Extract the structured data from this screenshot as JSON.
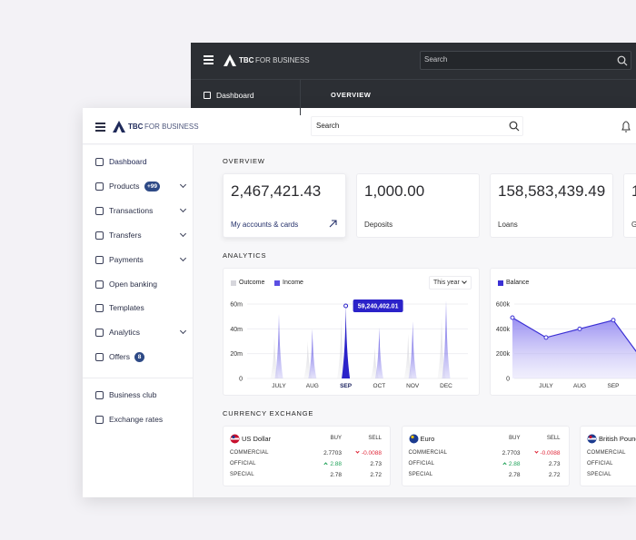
{
  "back_window": {
    "logo": {
      "brand": "TBC",
      "suffix": "FOR BUSINESS"
    },
    "search_placeholder": "Search",
    "nav_item": "Dashboard",
    "section": "OVERVIEW"
  },
  "header": {
    "logo": {
      "brand": "TBC",
      "suffix": "FOR BUSINESS"
    },
    "search_placeholder": "Search"
  },
  "sidebar": {
    "items": [
      {
        "label": "Dashboard",
        "active": true
      },
      {
        "label": "Products",
        "badge": "+99",
        "expandable": true
      },
      {
        "label": "Transactions",
        "expandable": true
      },
      {
        "label": "Transfers",
        "expandable": true
      },
      {
        "label": "Payments",
        "expandable": true
      },
      {
        "label": "Open banking"
      },
      {
        "label": "Templates"
      },
      {
        "label": "Analytics",
        "expandable": true
      },
      {
        "label": "Offers",
        "badge": "8"
      }
    ],
    "secondary": [
      {
        "label": "Business club"
      },
      {
        "label": "Exchange rates"
      }
    ]
  },
  "overview": {
    "title": "OVERVIEW",
    "cards": [
      {
        "amount": "2,467,421.43",
        "label": "My accounts & cards",
        "link": true
      },
      {
        "amount": "1,000.00",
        "label": "Deposits"
      },
      {
        "amount": "158,583,439.49",
        "label": "Loans"
      },
      {
        "amount": "1",
        "label": "G"
      }
    ]
  },
  "analytics": {
    "title": "ANALYTICS",
    "charts": [
      {
        "type": "spike",
        "period": "This year",
        "categories": [
          "JULY",
          "AUG",
          "SEP",
          "OCT",
          "NOV",
          "DEC"
        ],
        "series": [
          {
            "name": "Outcome",
            "color": "#d6d6dc",
            "values": [
              34000000,
              30000000,
              48000000,
              25000000,
              36000000,
              49000000
            ]
          },
          {
            "name": "Income",
            "color": "#5b4fe2",
            "values": [
              52000000,
              40000000,
              59240402.01,
              41000000,
              46000000,
              63000000
            ],
            "value_labels": [
              null,
              null,
              "59,240,402.01",
              null,
              null,
              null
            ]
          }
        ],
        "ylim": [
          0,
          60000000
        ],
        "yticks": [
          0,
          {
            "value": 20000000,
            "label": "20m"
          },
          {
            "value": 40000000,
            "label": "40m"
          },
          {
            "value": 60000000,
            "label": "60m"
          }
        ],
        "grid": true
      },
      {
        "type": "area",
        "categories": [
          null,
          "JULY",
          "AUG",
          "SEP",
          null
        ],
        "series": [
          {
            "name": "Balance",
            "color": "#3b30d4",
            "values": [
              490000,
              330000,
              400000,
              470000,
              100000
            ]
          }
        ],
        "ylim": [
          0,
          600000
        ],
        "yticks": [
          0,
          {
            "value": 200000,
            "label": "200k"
          },
          {
            "value": 400000,
            "label": "400k"
          },
          {
            "value": 600000,
            "label": "600k"
          }
        ],
        "grid": true
      }
    ]
  },
  "currency_exchange": {
    "title": "CURRENCY EXCHANGE",
    "columns": [
      "BUY",
      "SELL"
    ],
    "cards": [
      {
        "currency": "US Dollar",
        "flag": "us",
        "rows": [
          {
            "label": "COMMERCIAL",
            "buy": "2.7703",
            "sell": "-0.0088",
            "sell_trend": "down"
          },
          {
            "label": "OFFICIAL",
            "buy": "2.88",
            "buy_trend": "up",
            "sell": "2.73"
          },
          {
            "label": "SPECIAL",
            "buy": "2.78",
            "sell": "2.72"
          }
        ]
      },
      {
        "currency": "Euro",
        "flag": "eu",
        "rows": [
          {
            "label": "COMMERCIAL",
            "buy": "2.7703",
            "sell": "-0.0088",
            "sell_trend": "down"
          },
          {
            "label": "OFFICIAL",
            "buy": "2.88",
            "buy_trend": "up",
            "sell": "2.73"
          },
          {
            "label": "SPECIAL",
            "buy": "2.78",
            "sell": "2.72"
          }
        ]
      },
      {
        "currency": "British Pound",
        "flag": "uk",
        "rows": [
          {
            "label": "COMMERCIAL"
          },
          {
            "label": "OFFICIAL"
          },
          {
            "label": "SPECIAL"
          }
        ]
      }
    ]
  }
}
